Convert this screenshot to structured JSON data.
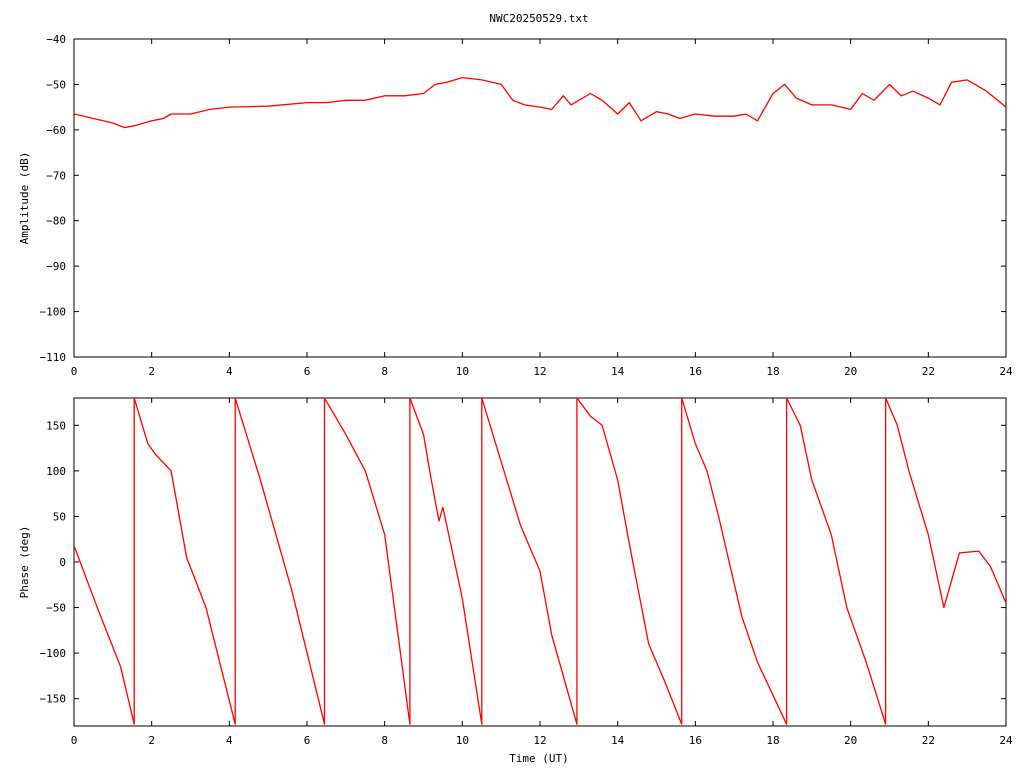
{
  "title": "NWC20250529.txt",
  "colors": {
    "series": "#ff0000",
    "axes": "#000000",
    "background": "#ffffff"
  },
  "chart_data": [
    {
      "type": "line",
      "title": "NWC20250529.txt",
      "xlabel": "",
      "ylabel": "Amplitude (dB)",
      "xlim": [
        0,
        24
      ],
      "ylim": [
        -110,
        -40
      ],
      "xticks": [
        0,
        2,
        4,
        6,
        8,
        10,
        12,
        14,
        16,
        18,
        20,
        22,
        24
      ],
      "yticks": [
        -110,
        -100,
        -90,
        -80,
        -70,
        -60,
        -50,
        -40
      ],
      "xtick_labels": [
        "0",
        "2",
        "4",
        "6",
        "8",
        "10",
        "12",
        "14",
        "16",
        "18",
        "20",
        "22",
        "24"
      ],
      "ytick_labels": [
        "−110",
        "−100",
        "−90",
        "−80",
        "−70",
        "−60",
        "−50",
        "−40"
      ],
      "grid": false,
      "series": [
        {
          "x": [
            0,
            0.5,
            1.0,
            1.3,
            1.6,
            2.0,
            2.3,
            2.5,
            3.0,
            3.5,
            4.0,
            5.0,
            6.0,
            6.5,
            7.0,
            7.5,
            8.0,
            8.5,
            9.0,
            9.3,
            9.6,
            10.0,
            10.5,
            11.0,
            11.3,
            11.6,
            12.0,
            12.3,
            12.6,
            12.8,
            13.0,
            13.3,
            13.6,
            14.0,
            14.3,
            14.6,
            15.0,
            15.3,
            15.6,
            16.0,
            16.5,
            17.0,
            17.3,
            17.6,
            18.0,
            18.3,
            18.6,
            19.0,
            19.5,
            20.0,
            20.3,
            20.6,
            21.0,
            21.3,
            21.6,
            22.0,
            22.3,
            22.6,
            23.0,
            23.5,
            24.0
          ],
          "y": [
            -56.5,
            -57.5,
            -58.5,
            -59.5,
            -59.0,
            -58.0,
            -57.5,
            -56.5,
            -56.5,
            -55.5,
            -55.0,
            -54.8,
            -54.0,
            -54.0,
            -53.5,
            -53.5,
            -52.5,
            -52.5,
            -52.0,
            -50.0,
            -49.5,
            -48.5,
            -49.0,
            -50.0,
            -53.5,
            -54.5,
            -55.0,
            -55.5,
            -52.5,
            -54.5,
            -53.5,
            -52.0,
            -53.5,
            -56.5,
            -54.0,
            -58.0,
            -56.0,
            -56.5,
            -57.5,
            -56.5,
            -57.0,
            -57.0,
            -56.5,
            -58.0,
            -52.0,
            -50.0,
            -53.0,
            -54.5,
            -54.5,
            -55.5,
            -52.0,
            -53.5,
            -50.0,
            -52.5,
            -51.5,
            -53.0,
            -54.5,
            -49.5,
            -49.0,
            -51.5,
            -55.0
          ]
        }
      ]
    },
    {
      "type": "line",
      "title": "",
      "xlabel": "Time (UT)",
      "ylabel": "Phase (deg)",
      "xlim": [
        0,
        24
      ],
      "ylim": [
        -180,
        180
      ],
      "xticks": [
        0,
        2,
        4,
        6,
        8,
        10,
        12,
        14,
        16,
        18,
        20,
        22,
        24
      ],
      "yticks": [
        -150,
        -100,
        -50,
        0,
        50,
        100,
        150
      ],
      "xtick_labels": [
        "0",
        "2",
        "4",
        "6",
        "8",
        "10",
        "12",
        "14",
        "16",
        "18",
        "20",
        "22",
        "24"
      ],
      "ytick_labels": [
        "−150",
        "−100",
        "−50",
        "0",
        "50",
        "100",
        "150"
      ],
      "grid": false,
      "series": [
        {
          "x": [
            0,
            0.6,
            1.2,
            1.55,
            1.55,
            1.9,
            2.1,
            2.5,
            2.9,
            3.4,
            4.15,
            4.15,
            4.8,
            5.6,
            6.45,
            6.45,
            7.0,
            7.5,
            8.0,
            8.65,
            8.65,
            9.0,
            9.2,
            9.4,
            9.5,
            10.0,
            10.5,
            10.5,
            11.0,
            11.5,
            12.0,
            12.3,
            12.95,
            12.95,
            13.3,
            13.6,
            14.0,
            14.3,
            14.8,
            15.2,
            15.65,
            15.65,
            16.0,
            16.3,
            16.6,
            17.2,
            17.6,
            18.35,
            18.35,
            18.7,
            19.0,
            19.5,
            19.9,
            20.4,
            20.9,
            20.9,
            21.2,
            21.5,
            22.0,
            22.4,
            22.8,
            23.3,
            23.6,
            24.0
          ],
          "y": [
            18,
            -50,
            -115,
            -178,
            180,
            130,
            118,
            100,
            5,
            -50,
            -178,
            180,
            90,
            -30,
            -178,
            180,
            140,
            100,
            30,
            -178,
            180,
            140,
            90,
            45,
            60,
            -40,
            -178,
            180,
            110,
            40,
            -10,
            -80,
            -178,
            180,
            160,
            150,
            90,
            20,
            -90,
            -130,
            -178,
            180,
            130,
            100,
            50,
            -60,
            -110,
            -178,
            180,
            150,
            90,
            30,
            -50,
            -110,
            -178,
            180,
            150,
            100,
            30,
            -50,
            10,
            12,
            -5,
            -45
          ]
        }
      ]
    }
  ]
}
